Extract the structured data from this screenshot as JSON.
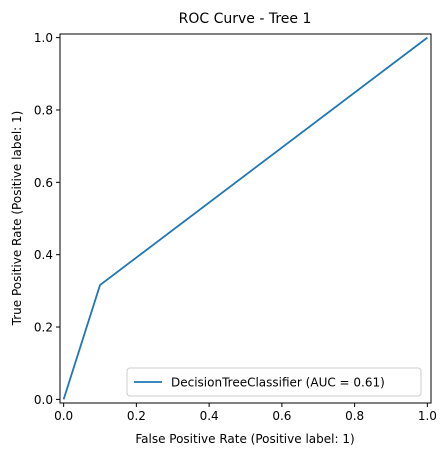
{
  "chart_data": {
    "type": "line",
    "title": "ROC Curve - Tree 1",
    "xlabel": "False Positive Rate (Positive label: 1)",
    "ylabel": "True Positive Rate (Positive label: 1)",
    "xlim": [
      -0.01,
      1.01
    ],
    "ylim": [
      -0.01,
      1.01
    ],
    "xticks": [
      0.0,
      0.2,
      0.4,
      0.6,
      0.8,
      1.0
    ],
    "xtick_labels": [
      "0.0",
      "0.2",
      "0.4",
      "0.6",
      "0.8",
      "1.0"
    ],
    "yticks": [
      0.0,
      0.2,
      0.4,
      0.6,
      0.8,
      1.0
    ],
    "ytick_labels": [
      "0.0",
      "0.2",
      "0.4",
      "0.6",
      "0.8",
      "1.0"
    ],
    "grid": false,
    "legend_position": "lower-right",
    "series": [
      {
        "name": "DecisionTreeClassifier (AUC = 0.61)",
        "color": "#1f77b4",
        "x": [
          0.0,
          0.1,
          1.0
        ],
        "y": [
          0.0,
          0.316,
          1.0
        ]
      }
    ]
  }
}
